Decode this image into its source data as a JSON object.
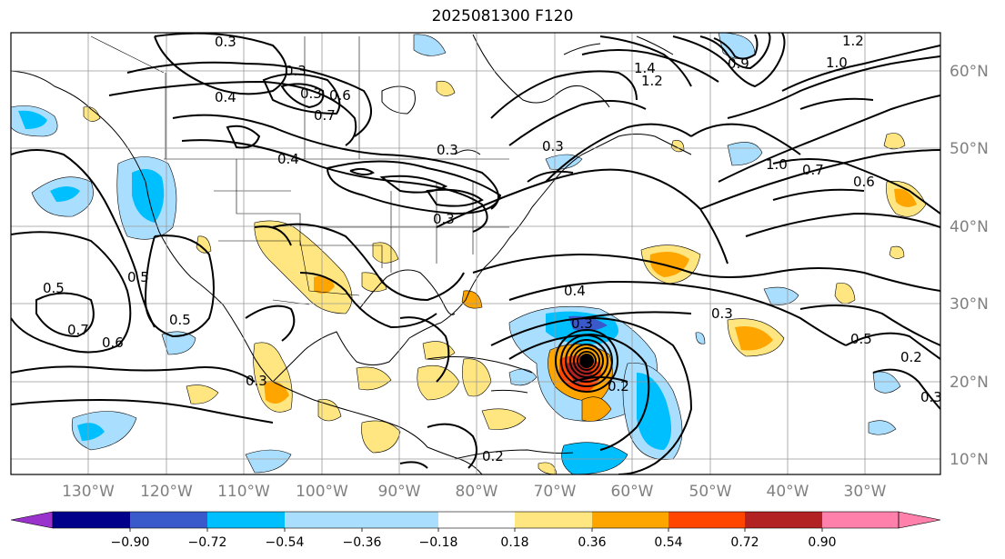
{
  "title": "2025081300 F120",
  "lon_labels": [
    "130°W",
    "120°W",
    "110°W",
    "100°W",
    "90°W",
    "80°W",
    "70°W",
    "60°W",
    "50°W",
    "40°W",
    "30°W"
  ],
  "lat_labels": [
    "60°N",
    "50°N",
    "40°N",
    "30°N",
    "20°N",
    "10°N"
  ],
  "colorbar": {
    "ticks": [
      "−0.90",
      "−0.72",
      "−0.54",
      "−0.36",
      "−0.18",
      "0.18",
      "0.36",
      "0.54",
      "0.72",
      "0.90"
    ],
    "colors": [
      "#9933cc",
      "#00008b",
      "#3a5acc",
      "#00bfff",
      "#aadeff",
      "#ffffff",
      "#ffe680",
      "#ffa500",
      "#ff4500",
      "#b22222",
      "#ff80aa"
    ]
  },
  "contour_labels": [
    "0.3",
    "0.3",
    "0.4",
    "0.3",
    "0.7",
    "0.6",
    "0.4",
    "0.3",
    "1.2",
    "1.4",
    "1.2",
    "1.0",
    "0.3",
    "0.9",
    "0.3",
    "1.0",
    "0.7",
    "0.6",
    "0.5",
    "0.5",
    "0.7",
    "0.6",
    "0.5",
    "0.3",
    "0.4",
    "0.3",
    "0.2",
    "0.3",
    "0.5",
    "0.2",
    "0.3",
    "0.2"
  ]
}
